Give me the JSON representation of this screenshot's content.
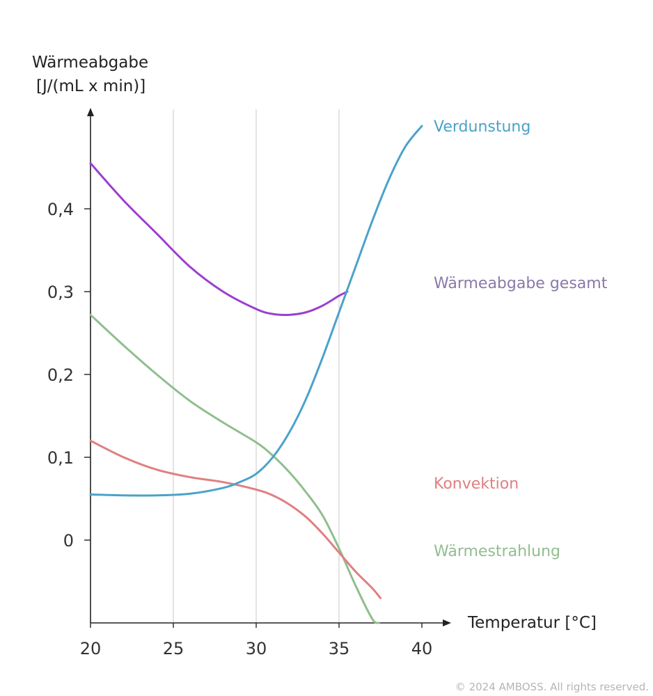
{
  "chart_data": {
    "type": "line",
    "ylabel_line1": "Wärmeabgabe",
    "ylabel_line2": "[J/(mL x min)]",
    "xlabel": "Temperatur [°C]",
    "xlim": [
      20,
      40
    ],
    "ylim": [
      -0.1,
      0.5
    ],
    "x_ticks": [
      "20",
      "25",
      "30",
      "35",
      "40"
    ],
    "x_tick_values": [
      20,
      25,
      30,
      35,
      40
    ],
    "y_ticks": [
      "0",
      "0,1",
      "0,2",
      "0,3",
      "0,4"
    ],
    "y_tick_values": [
      0,
      0.1,
      0.2,
      0.3,
      0.4
    ],
    "grid_x": [
      25,
      30,
      35
    ],
    "series": [
      {
        "name": "Verdunstung",
        "color": "#4aa2c9",
        "x": [
          20,
          22,
          24,
          26,
          28,
          29,
          30,
          31,
          32,
          33,
          34,
          35,
          36,
          37,
          38,
          39,
          40
        ],
        "values": [
          0.055,
          0.054,
          0.054,
          0.056,
          0.063,
          0.07,
          0.08,
          0.1,
          0.13,
          0.17,
          0.22,
          0.275,
          0.33,
          0.385,
          0.435,
          0.475,
          0.5
        ]
      },
      {
        "name": "Wärmeabgabe gesamt",
        "color": "#9b3fce",
        "x": [
          20,
          22,
          24,
          26,
          28,
          30,
          31,
          32,
          33,
          34,
          35,
          35.5
        ],
        "values": [
          0.455,
          0.41,
          0.37,
          0.33,
          0.3,
          0.279,
          0.273,
          0.272,
          0.275,
          0.283,
          0.295,
          0.3
        ]
      },
      {
        "name": "Konvektion",
        "color": "#e07f80",
        "x": [
          20,
          22,
          24,
          26,
          28,
          30,
          31,
          32,
          33,
          34,
          35,
          36,
          37,
          37.5
        ],
        "values": [
          0.12,
          0.1,
          0.085,
          0.076,
          0.07,
          0.061,
          0.054,
          0.043,
          0.028,
          0.008,
          -0.015,
          -0.038,
          -0.058,
          -0.07
        ]
      },
      {
        "name": "Wärmestrahlung",
        "color": "#90be8e",
        "x": [
          20,
          22,
          24,
          26,
          28,
          30,
          31,
          32,
          33,
          34,
          35,
          36,
          37,
          37.4
        ],
        "values": [
          0.272,
          0.235,
          0.2,
          0.168,
          0.142,
          0.118,
          0.102,
          0.082,
          0.058,
          0.03,
          -0.01,
          -0.055,
          -0.095,
          -0.1
        ]
      }
    ]
  },
  "copyright": "© 2024 AMBOSS. All rights reserved."
}
